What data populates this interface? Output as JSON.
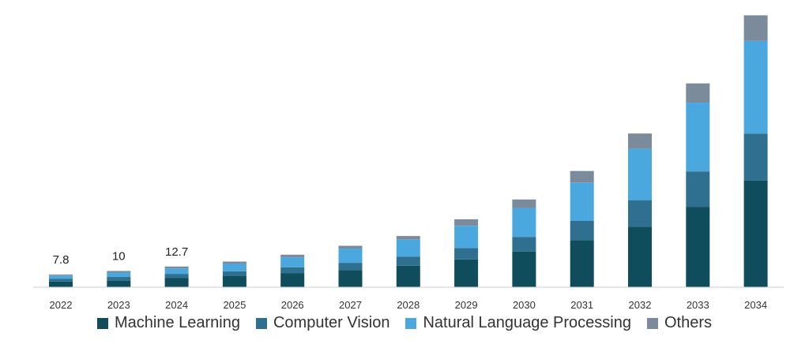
{
  "chart_data": {
    "type": "bar",
    "stacked": true,
    "categories": [
      "2022",
      "2023",
      "2024",
      "2025",
      "2026",
      "2027",
      "2028",
      "2029",
      "2030",
      "2031",
      "2032",
      "2033",
      "2034"
    ],
    "series": [
      {
        "name": "Machine Learning",
        "color": "#0f4c5c",
        "values": [
          3.5,
          4.2,
          5.6,
          6.8,
          8.5,
          10.6,
          13.2,
          17.1,
          22.0,
          29.0,
          37.2,
          49.5,
          65.6
        ]
      },
      {
        "name": "Computer Vision",
        "color": "#2f6f8f",
        "values": [
          1.6,
          2.1,
          2.6,
          3.0,
          3.8,
          4.4,
          5.5,
          7.0,
          9.0,
          11.8,
          16.2,
          21.8,
          28.9
        ]
      },
      {
        "name": "Natural Language Processing",
        "color": "#4aa8de",
        "values": [
          2.0,
          2.7,
          3.3,
          4.6,
          6.1,
          8.8,
          10.5,
          13.7,
          17.6,
          23.4,
          31.9,
          42.3,
          57.0
        ]
      },
      {
        "name": "Others",
        "color": "#7b8b9c",
        "values": [
          0.7,
          1.0,
          1.2,
          1.4,
          1.6,
          1.7,
          2.3,
          4.0,
          5.4,
          7.3,
          9.3,
          11.8,
          15.8
        ]
      }
    ],
    "data_labels": [
      "7.8",
      "10",
      "12.7",
      "",
      "",
      "",
      "",
      "",
      "",
      "",
      "",
      "",
      ""
    ],
    "ylim": [
      0,
      168
    ],
    "grid": false,
    "legend_position": "bottom"
  }
}
